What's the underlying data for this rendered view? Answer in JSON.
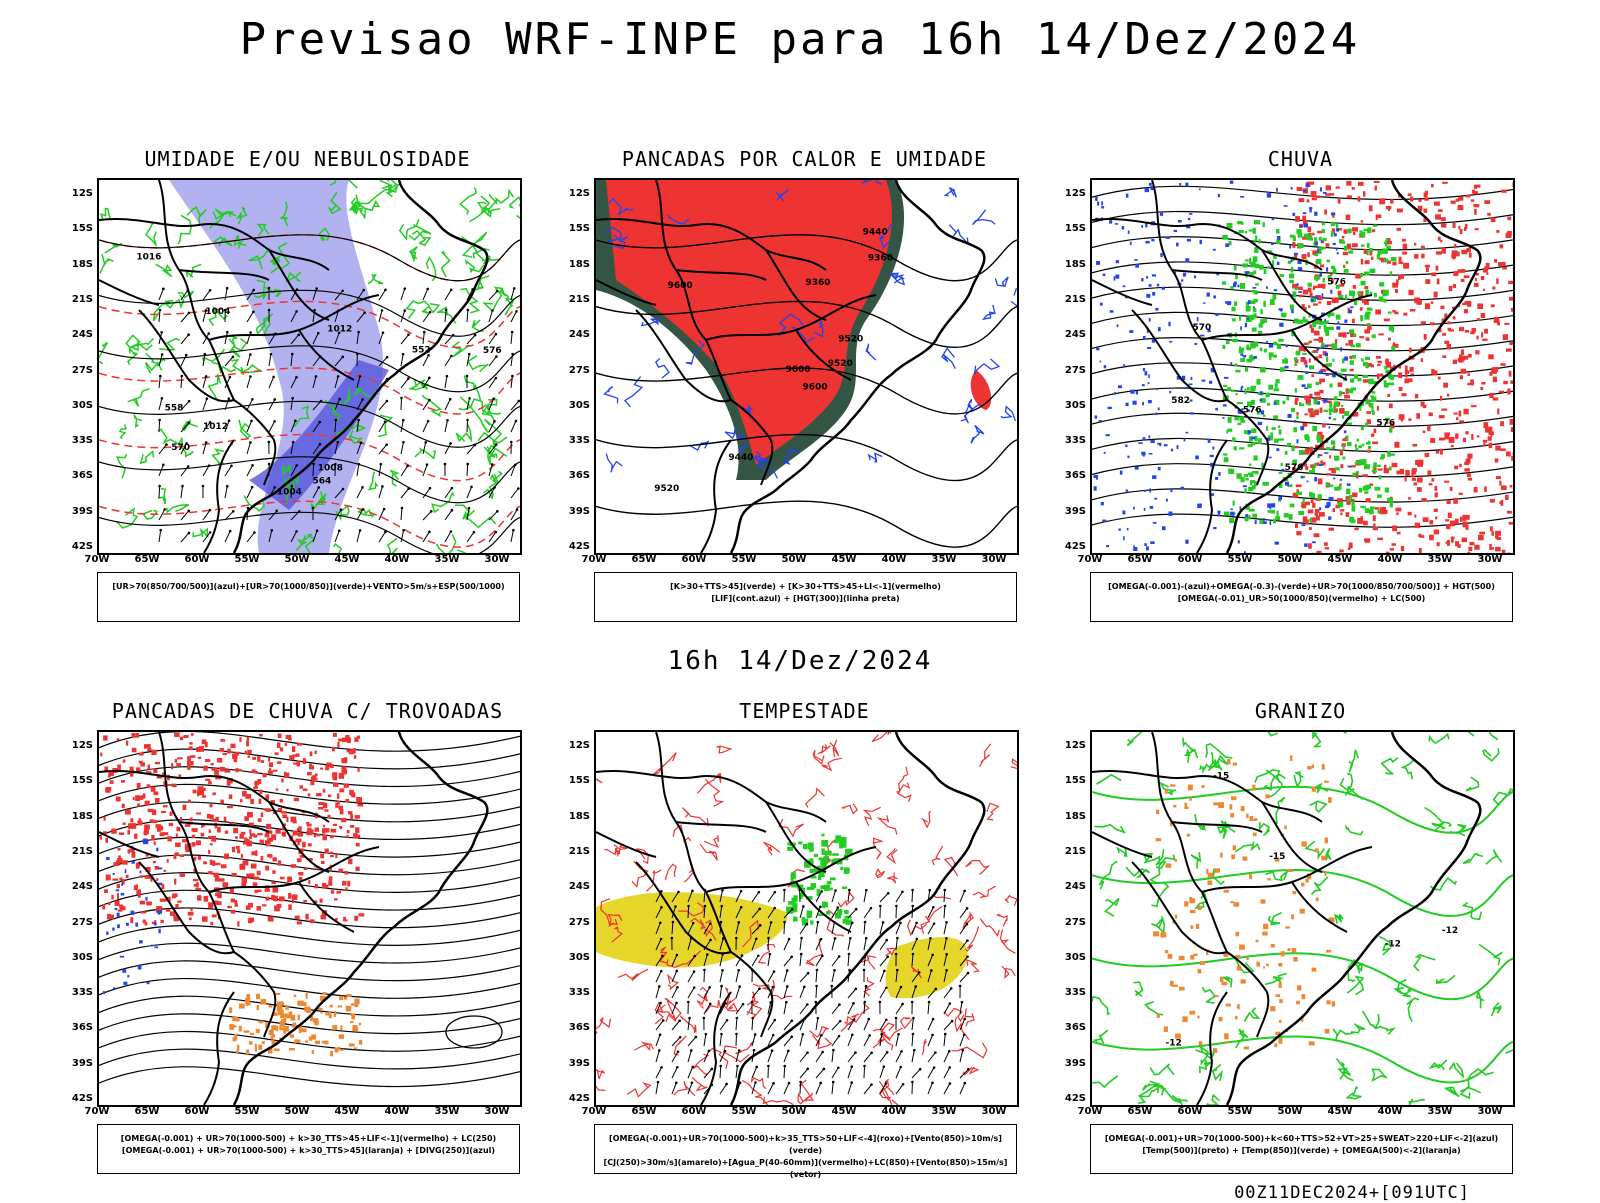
{
  "header": {
    "main_title": "Previsao WRF-INPE  para 16h 14/Dez/2024",
    "mid_title": "16h 14/Dez/2024",
    "footer_run": "00Z11DEC2024+[091UTC]"
  },
  "axes": {
    "lat_labels": [
      "12S",
      "15S",
      "18S",
      "21S",
      "24S",
      "27S",
      "30S",
      "33S",
      "36S",
      "39S",
      "42S"
    ],
    "lon_labels": [
      "70W",
      "65W",
      "60W",
      "55W",
      "50W",
      "45W",
      "40W",
      "35W",
      "30W"
    ]
  },
  "panels": [
    {
      "title": "UMIDADE E/OU NEBULOSIDADE",
      "legend": [
        "[UR>70(850/700/500)](azul)+[UR>70(1000/850)](verde)+VENTO>5m/s+ESP(500/1000)"
      ],
      "contour_labels": [
        "1004",
        "1008",
        "1012",
        "1016",
        "576",
        "570",
        "564",
        "558",
        "552",
        "1004",
        "1012"
      ]
    },
    {
      "title": "PANCADAS POR CALOR E UMIDADE",
      "legend": [
        "[K>30+TTS>45](verde) + [K>30+TTS>45+LI<-1](vermelho)",
        "[LIF](cont.azul) + [HGT(300)](linha preta)"
      ],
      "contour_labels": [
        "9600",
        "9600",
        "9600",
        "9520",
        "9520",
        "9440",
        "9440",
        "9360",
        "9360",
        "9520"
      ]
    },
    {
      "title": "CHUVA",
      "legend": [
        "[OMEGA(-0.001)-(azul)+OMEGA(-0.3)-(verde)+UR>70(1000/850/700/500)] + HGT(500)",
        "[OMEGA(-0.01)_UR>50(1000/850)(vermelho) + LC(500)"
      ],
      "contour_labels": [
        "576",
        "576",
        "576",
        "582",
        "570",
        "576"
      ]
    },
    {
      "title": "PANCADAS DE CHUVA C/ TROVOADAS",
      "legend": [
        "[OMEGA(-0.001) + UR>70(1000-500) + k>30_TTS>45+LIF<-1](vermelho) + LC(250)",
        "[OMEGA(-0.001) + UR>70(1000-500) + k>30_TTS>45](laranja) + [DIVG(250)](azul)"
      ],
      "contour_labels": []
    },
    {
      "title": "TEMPESTADE",
      "legend": [
        "[OMEGA(-0.001)+UR>70(1000-500)+k>35_TTS>50+LIF<-4](roxo)+[Vento(850)>10m/s](verde)",
        "[CJ(250)>30m/s](amarelo)+[Agua_P(40-60mm)](vermelho)+LC(850)+[Vento(850)>15m/s](vetor)"
      ],
      "contour_labels": []
    },
    {
      "title": "GRANIZO",
      "legend": [
        "[OMEGA(-0.001)+UR>70(1000-500)+k<60+TTS>52+VT>25+SWEAT>220+LIF<-2](azul)",
        "[Temp(500)](preto) + [Temp(850)](verde) + [OMEGA(500)<-2](laranja)"
      ],
      "contour_labels": [
        "-12",
        "-12",
        "-12",
        "-15",
        "-15"
      ]
    }
  ],
  "colors": {
    "humid_blue": "#aaaaee",
    "green": "#22cc22",
    "red": "#ee3333",
    "dark_teal": "#335544",
    "blue": "#2244ee",
    "orange": "#ee8833",
    "yellow": "#e6d62a"
  }
}
